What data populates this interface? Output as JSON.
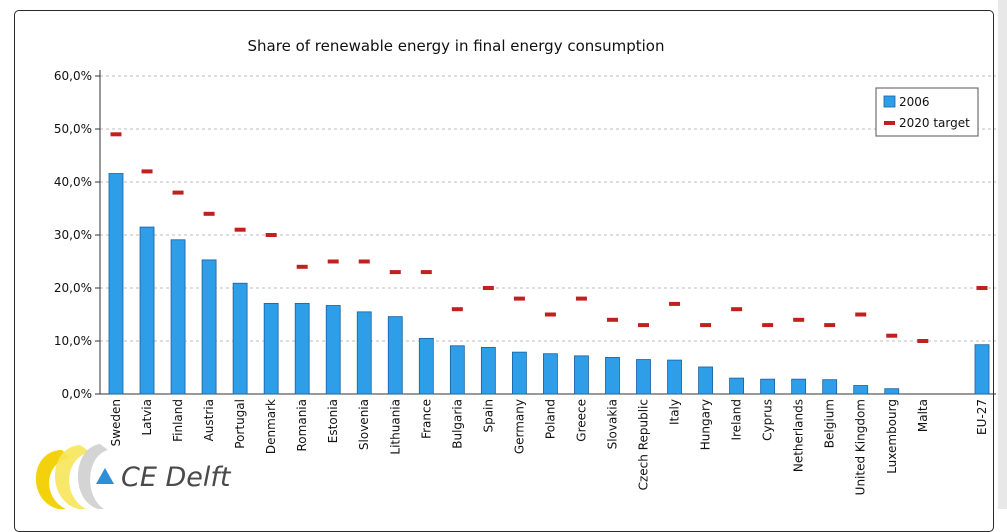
{
  "brand": {
    "name": "CE Delft"
  },
  "colors": {
    "bar": "#2e9ee8",
    "bar_stroke": "#1a5fa0",
    "target": "#c0211f",
    "grid": "#a6a6a6",
    "logo_yellow": "#f2d000",
    "logo_blue": "#2d8fd5"
  },
  "chart_data": {
    "type": "bar",
    "title": "Share of renewable energy in final energy consumption",
    "categories": [
      "Sweden",
      "Latvia",
      "Finland",
      "Austria",
      "Portugal",
      "Denmark",
      "Romania",
      "Estonia",
      "Slovenia",
      "Lithuania",
      "France",
      "Bulgaria",
      "Spain",
      "Germany",
      "Poland",
      "Greece",
      "Slovakia",
      "Czech Republic",
      "Italy",
      "Hungary",
      "Ireland",
      "Cyprus",
      "Netherlands",
      "Belgium",
      "United Kingdom",
      "Luxembourg",
      "Malta",
      "EU-27"
    ],
    "series": [
      {
        "name": "2006",
        "kind": "bar",
        "values": [
          41.6,
          31.5,
          29.1,
          25.3,
          20.9,
          17.1,
          17.1,
          16.7,
          15.5,
          14.6,
          10.5,
          9.1,
          8.8,
          7.9,
          7.6,
          7.2,
          6.9,
          6.5,
          6.4,
          5.1,
          3.0,
          2.8,
          2.8,
          2.7,
          1.6,
          1.0,
          0.0,
          9.3
        ]
      },
      {
        "name": "2020 target",
        "kind": "marker",
        "values": [
          49,
          42,
          38,
          34,
          31,
          30,
          24,
          25,
          25,
          23,
          23,
          16,
          20,
          18,
          15,
          18,
          14,
          13,
          17,
          13,
          16,
          13,
          14,
          13,
          15,
          11,
          10,
          20
        ]
      }
    ],
    "yticks": [
      "0,0%",
      "10,0%",
      "20,0%",
      "30,0%",
      "40,0%",
      "50,0%",
      "60,0%"
    ],
    "ylim": [
      0,
      60
    ],
    "grid": true,
    "legend_position": "top-right"
  }
}
